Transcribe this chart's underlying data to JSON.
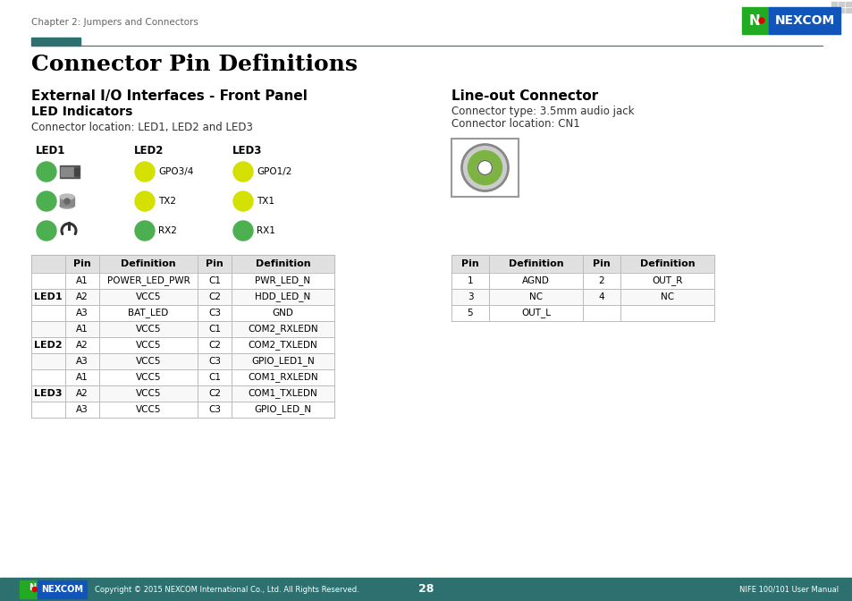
{
  "page_header": "Chapter 2: Jumpers and Connectors",
  "title": "Connector Pin Definitions",
  "section1_title": "External I/O Interfaces - Front Panel",
  "section1_sub": "LED Indicators",
  "section1_loc": "Connector location: LED1, LED2 and LED3",
  "section2_title": "Line-out Connector",
  "section2_type": "Connector type: 3.5mm audio jack",
  "section2_loc": "Connector location: CN1",
  "led_labels": [
    "LED1",
    "LED2",
    "LED3"
  ],
  "green": "#4CAF50",
  "yellow": "#D4E000",
  "header_bar_color": "#2E7070",
  "nexcom_blue": "#1155BB",
  "nexcom_green": "#22AA22",
  "nexcom_red": "#DD0000",
  "footer_bg": "#2E7070",
  "footer_text": "Copyright © 2015 NEXCOM International Co., Ltd. All Rights Reserved.",
  "page_number": "28",
  "footer_right": "NIFE 100/101 User Manual",
  "table1_rows": [
    [
      "LED1",
      "A1",
      "POWER_LED_PWR",
      "C1",
      "PWR_LED_N"
    ],
    [
      "",
      "A2",
      "VCC5",
      "C2",
      "HDD_LED_N"
    ],
    [
      "",
      "A3",
      "BAT_LED",
      "C3",
      "GND"
    ],
    [
      "LED2",
      "A1",
      "VCC5",
      "C1",
      "COM2_RXLEDN"
    ],
    [
      "",
      "A2",
      "VCC5",
      "C2",
      "COM2_TXLEDN"
    ],
    [
      "",
      "A3",
      "VCC5",
      "C3",
      "GPIO_LED1_N"
    ],
    [
      "LED3",
      "A1",
      "VCC5",
      "C1",
      "COM1_RXLEDN"
    ],
    [
      "",
      "A2",
      "VCC5",
      "C2",
      "COM1_TXLEDN"
    ],
    [
      "",
      "A3",
      "VCC5",
      "C3",
      "GPIO_LED_N"
    ]
  ],
  "table2_rows": [
    [
      "1",
      "AGND",
      "2",
      "OUT_R"
    ],
    [
      "3",
      "NC",
      "4",
      "NC"
    ],
    [
      "5",
      "OUT_L",
      "",
      ""
    ]
  ],
  "bg_color": "#FFFFFF"
}
